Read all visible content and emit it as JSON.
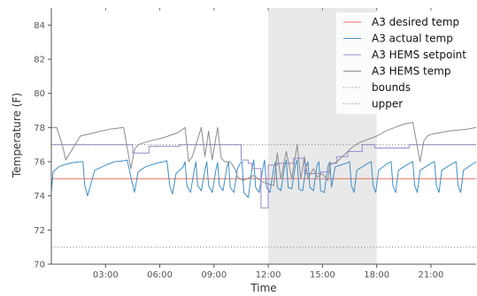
{
  "chart_data": {
    "type": "line",
    "xlabel": "Time",
    "ylabel": "Temperature (F)",
    "xlim": [
      0,
      23.5
    ],
    "ylim": [
      70,
      85
    ],
    "y_ticks": [
      70,
      72,
      74,
      76,
      78,
      80,
      82,
      84
    ],
    "x_ticks": [
      {
        "hour": 3,
        "label": "03:00"
      },
      {
        "hour": 6,
        "label": "06:00"
      },
      {
        "hour": 9,
        "label": "09:00"
      },
      {
        "hour": 12,
        "label": "12:00"
      },
      {
        "hour": 15,
        "label": "15:00"
      },
      {
        "hour": 18,
        "label": "18:00"
      },
      {
        "hour": 21,
        "label": "21:00"
      }
    ],
    "shaded_region": {
      "x_start": 12,
      "x_end": 18,
      "color": "#e9e9e9"
    },
    "legend_position": "top-right",
    "grid": false,
    "series": [
      {
        "name": "A3 desired temp",
        "style": "solid",
        "color": "#e8705a",
        "x": [
          0,
          23.5
        ],
        "y": [
          75.0,
          75.0
        ]
      },
      {
        "name": "A3 actual temp",
        "style": "solid",
        "color": "#3d8fc6",
        "x": [
          0,
          0.1,
          0.4,
          0.8,
          1.2,
          1.6,
          1.75,
          1.85,
          2.0,
          2.4,
          3.0,
          3.5,
          4.0,
          4.2,
          4.4,
          4.6,
          4.8,
          5.2,
          5.8,
          6.2,
          6.4,
          6.55,
          6.7,
          6.9,
          7.3,
          7.4,
          7.5,
          7.7,
          7.9,
          8.0,
          8.1,
          8.3,
          8.5,
          8.6,
          8.7,
          8.9,
          9.1,
          9.2,
          9.3,
          9.5,
          9.7,
          9.8,
          9.9,
          10.1,
          10.3,
          10.5,
          10.55,
          10.65,
          10.9,
          11.1,
          11.2,
          11.3,
          11.5,
          11.7,
          11.8,
          11.9,
          12.1,
          12.3,
          12.4,
          12.5,
          12.7,
          12.9,
          13.0,
          13.1,
          13.3,
          13.5,
          13.6,
          13.7,
          13.9,
          14.1,
          14.2,
          14.3,
          14.5,
          14.7,
          14.8,
          14.9,
          15.1,
          15.3,
          15.4,
          15.5,
          15.7,
          16.3,
          16.5,
          16.6,
          16.75,
          16.9,
          17.5,
          17.7,
          17.8,
          17.95,
          18.1,
          18.6,
          18.8,
          18.9,
          19.05,
          19.2,
          19.8,
          20.0,
          20.1,
          20.25,
          20.4,
          21.0,
          21.2,
          21.3,
          21.45,
          21.6,
          22.2,
          22.4,
          22.5,
          22.65,
          22.8,
          23.5
        ],
        "y": [
          74.2,
          75.4,
          75.7,
          75.85,
          75.95,
          76.0,
          76.0,
          74.6,
          74.0,
          75.5,
          75.8,
          76.0,
          76.05,
          76.1,
          75.1,
          74.2,
          75.4,
          75.7,
          75.9,
          76.0,
          76.05,
          74.6,
          74.1,
          75.3,
          75.7,
          76.0,
          74.6,
          74.2,
          75.5,
          76.0,
          74.6,
          74.3,
          75.5,
          76.0,
          74.6,
          74.2,
          75.5,
          75.95,
          74.6,
          74.3,
          75.6,
          76.0,
          74.5,
          74.2,
          75.6,
          76.0,
          76.0,
          74.2,
          73.9,
          75.6,
          76.1,
          74.5,
          74.2,
          75.6,
          76.1,
          74.5,
          74.2,
          75.6,
          76.0,
          74.5,
          74.3,
          75.7,
          76.1,
          74.5,
          74.4,
          75.8,
          76.1,
          74.4,
          74.3,
          75.7,
          76.0,
          74.5,
          74.3,
          75.8,
          76.0,
          74.3,
          74.2,
          75.7,
          76.0,
          74.5,
          75.7,
          75.9,
          76.0,
          74.6,
          74.2,
          75.5,
          75.9,
          76.0,
          74.6,
          74.2,
          75.5,
          75.9,
          76.0,
          74.6,
          74.2,
          75.5,
          75.9,
          76.0,
          74.6,
          74.2,
          75.5,
          75.9,
          76.0,
          74.6,
          74.2,
          75.5,
          75.9,
          76.0,
          74.6,
          74.2,
          75.5,
          76.0
        ]
      },
      {
        "name": "A3 HEMS setpoint",
        "style": "step",
        "color": "#9b88cc",
        "x": [
          0,
          4.5,
          4.5,
          5.4,
          5.4,
          7.1,
          7.1,
          10.5,
          10.5,
          10.9,
          10.9,
          11.1,
          11.1,
          11.6,
          11.6,
          11.9,
          11.9,
          12.0,
          12.0,
          12.5,
          12.5,
          13.4,
          13.4,
          14.0,
          14.0,
          14.9,
          14.9,
          15.4,
          15.4,
          15.8,
          15.8,
          16.4,
          16.4,
          17.2,
          17.2,
          17.9,
          17.9,
          19.8,
          19.8,
          20.7,
          20.7,
          23.5
        ],
        "y": [
          77.0,
          77.0,
          76.5,
          76.5,
          76.9,
          76.9,
          77.0,
          77.0,
          76.1,
          76.1,
          75.9,
          75.9,
          75.6,
          75.6,
          73.3,
          73.3,
          73.3,
          73.3,
          75.8,
          75.8,
          75.9,
          75.9,
          76.2,
          76.2,
          75.3,
          75.3,
          75.4,
          75.4,
          75.9,
          75.9,
          76.3,
          76.3,
          76.6,
          76.6,
          77.0,
          77.0,
          76.8,
          76.8,
          77.0,
          77.0,
          77.0,
          77.0
        ]
      },
      {
        "name": "A3 HEMS temp",
        "style": "solid",
        "color": "#8c8c8c",
        "x": [
          0,
          0.3,
          0.6,
          0.8,
          1.6,
          2.4,
          3.2,
          4.0,
          4.4,
          4.6,
          4.8,
          5.4,
          6.2,
          7.0,
          7.4,
          7.6,
          7.8,
          8.3,
          8.5,
          8.7,
          8.9,
          9.2,
          9.4,
          9.6,
          9.9,
          10.2,
          10.3,
          10.6,
          11.2,
          11.7,
          12.0,
          12.3,
          12.5,
          12.7,
          13.0,
          13.3,
          13.6,
          13.8,
          14.0,
          14.2,
          14.5,
          14.7,
          15.0,
          15.3,
          15.4,
          15.8,
          16.2,
          16.6,
          17.0,
          17.5,
          18.0,
          18.5,
          19.0,
          19.5,
          20.0,
          20.4,
          20.6,
          20.8,
          21.0,
          21.5,
          22.0,
          23.0,
          23.5
        ],
        "y": [
          78.0,
          78.0,
          77.0,
          76.1,
          77.5,
          77.7,
          77.9,
          78.0,
          75.6,
          76.7,
          77.0,
          77.2,
          77.4,
          77.7,
          78.0,
          76.0,
          76.3,
          78.0,
          76.3,
          77.8,
          76.1,
          78.0,
          76.2,
          76.0,
          76.0,
          75.5,
          75.1,
          74.9,
          75.2,
          74.8,
          74.7,
          74.6,
          76.5,
          75.0,
          76.6,
          75.0,
          77.0,
          75.0,
          76.3,
          75.0,
          75.6,
          75.1,
          75.3,
          74.9,
          75.8,
          76.0,
          76.4,
          76.8,
          77.1,
          77.3,
          77.5,
          77.8,
          78.0,
          78.2,
          78.3,
          76.0,
          77.2,
          77.5,
          77.6,
          77.7,
          77.8,
          77.9,
          78.0
        ]
      },
      {
        "name": "bounds",
        "style": "dotted",
        "color": "#777777",
        "x": [
          0,
          23.5
        ],
        "y": [
          71.0,
          71.0
        ]
      },
      {
        "name": "upper",
        "style": "dotted",
        "color": "#777777",
        "x": [
          0,
          23.5
        ],
        "y": [
          77.0,
          77.0
        ]
      }
    ]
  }
}
